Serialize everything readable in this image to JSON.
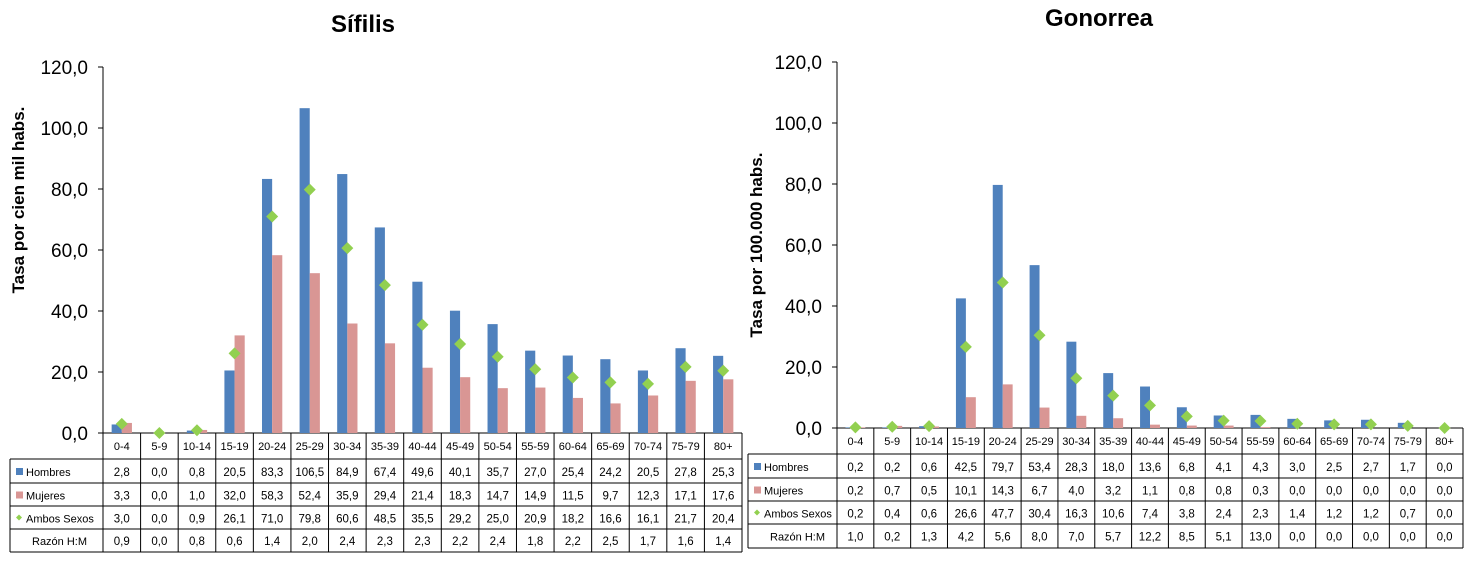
{
  "chart_data": [
    {
      "type": "bar",
      "title": "Sífilis",
      "xlabel": "",
      "ylabel": "Tasa por cien mil habs.",
      "ylim": [
        0,
        120
      ],
      "yticks": [
        "0,0",
        "20,0",
        "40,0",
        "60,0",
        "80,0",
        "100,0",
        "120,0"
      ],
      "categories": [
        "0-4",
        "5-9",
        "10-14",
        "15-19",
        "20-24",
        "25-29",
        "30-34",
        "35-39",
        "40-44",
        "45-49",
        "50-54",
        "55-59",
        "60-64",
        "65-69",
        "70-74",
        "75-79",
        "80+"
      ],
      "series": [
        {
          "name": "Hombres",
          "kind": "bar",
          "color": "#4f81bd",
          "values": [
            2.8,
            0.0,
            0.8,
            20.5,
            83.3,
            106.5,
            84.9,
            67.4,
            49.6,
            40.1,
            35.7,
            27.0,
            25.4,
            24.2,
            20.5,
            27.8,
            25.3
          ],
          "labels": [
            "2,8",
            "0,0",
            "0,8",
            "20,5",
            "83,3",
            "106,5",
            "84,9",
            "67,4",
            "49,6",
            "40,1",
            "35,7",
            "27,0",
            "25,4",
            "24,2",
            "20,5",
            "27,8",
            "25,3"
          ]
        },
        {
          "name": "Mujeres",
          "kind": "bar",
          "color": "#d99694",
          "values": [
            3.3,
            0.0,
            1.0,
            32.0,
            58.3,
            52.4,
            35.9,
            29.4,
            21.4,
            18.3,
            14.7,
            14.9,
            11.5,
            9.7,
            12.3,
            17.1,
            17.6
          ],
          "labels": [
            "3,3",
            "0,0",
            "1,0",
            "32,0",
            "58,3",
            "52,4",
            "35,9",
            "29,4",
            "21,4",
            "18,3",
            "14,7",
            "14,9",
            "11,5",
            "9,7",
            "12,3",
            "17,1",
            "17,6"
          ]
        },
        {
          "name": "Ambos Sexos",
          "kind": "marker",
          "color": "#92d050",
          "values": [
            3.0,
            0.0,
            0.9,
            26.1,
            71.0,
            79.8,
            60.6,
            48.5,
            35.5,
            29.2,
            25.0,
            20.9,
            18.2,
            16.6,
            16.1,
            21.7,
            20.4
          ],
          "labels": [
            "3,0",
            "0,0",
            "0,9",
            "26,1",
            "71,0",
            "79,8",
            "60,6",
            "48,5",
            "35,5",
            "29,2",
            "25,0",
            "20,9",
            "18,2",
            "16,6",
            "16,1",
            "21,7",
            "20,4"
          ]
        },
        {
          "name": "Razón H:M",
          "kind": "table",
          "values": [
            0.9,
            0.0,
            0.8,
            0.6,
            1.4,
            2.0,
            2.4,
            2.3,
            2.3,
            2.2,
            2.4,
            1.8,
            2.2,
            2.5,
            1.7,
            1.6,
            1.4
          ],
          "labels": [
            "0,9",
            "0,0",
            "0,8",
            "0,6",
            "1,4",
            "2,0",
            "2,4",
            "2,3",
            "2,3",
            "2,2",
            "2,4",
            "1,8",
            "2,2",
            "2,5",
            "1,7",
            "1,6",
            "1,4"
          ]
        }
      ]
    },
    {
      "type": "bar",
      "title": "Gonorrea",
      "xlabel": "",
      "ylabel": "Tasa por 100.000 habs.",
      "ylim": [
        0,
        120
      ],
      "yticks": [
        "0,0",
        "20,0",
        "40,0",
        "60,0",
        "80,0",
        "100,0",
        "120,0"
      ],
      "categories": [
        "0-4",
        "5-9",
        "10-14",
        "15-19",
        "20-24",
        "25-29",
        "30-34",
        "35-39",
        "40-44",
        "45-49",
        "50-54",
        "55-59",
        "60-64",
        "65-69",
        "70-74",
        "75-79",
        "80+"
      ],
      "series": [
        {
          "name": "Hombres",
          "kind": "bar",
          "color": "#4f81bd",
          "values": [
            0.2,
            0.2,
            0.6,
            42.5,
            79.7,
            53.4,
            28.3,
            18.0,
            13.6,
            6.8,
            4.1,
            4.3,
            3.0,
            2.5,
            2.7,
            1.7,
            0.0
          ],
          "labels": [
            "0,2",
            "0,2",
            "0,6",
            "42,5",
            "79,7",
            "53,4",
            "28,3",
            "18,0",
            "13,6",
            "6,8",
            "4,1",
            "4,3",
            "3,0",
            "2,5",
            "2,7",
            "1,7",
            "0,0"
          ]
        },
        {
          "name": "Mujeres",
          "kind": "bar",
          "color": "#d99694",
          "values": [
            0.2,
            0.7,
            0.5,
            10.1,
            14.3,
            6.7,
            4.0,
            3.2,
            1.1,
            0.8,
            0.8,
            0.3,
            0.0,
            0.0,
            0.0,
            0.0,
            0.0
          ],
          "labels": [
            "0,2",
            "0,7",
            "0,5",
            "10,1",
            "14,3",
            "6,7",
            "4,0",
            "3,2",
            "1,1",
            "0,8",
            "0,8",
            "0,3",
            "0,0",
            "0,0",
            "0,0",
            "0,0",
            "0,0"
          ]
        },
        {
          "name": "Ambos Sexos",
          "kind": "marker",
          "color": "#92d050",
          "values": [
            0.2,
            0.4,
            0.6,
            26.6,
            47.7,
            30.4,
            16.3,
            10.6,
            7.4,
            3.8,
            2.4,
            2.3,
            1.4,
            1.2,
            1.2,
            0.7,
            0.0
          ],
          "labels": [
            "0,2",
            "0,4",
            "0,6",
            "26,6",
            "47,7",
            "30,4",
            "16,3",
            "10,6",
            "7,4",
            "3,8",
            "2,4",
            "2,3",
            "1,4",
            "1,2",
            "1,2",
            "0,7",
            "0,0"
          ]
        },
        {
          "name": "Razón H:M",
          "kind": "table",
          "values": [
            1.0,
            0.2,
            1.3,
            4.2,
            5.6,
            8.0,
            7.0,
            5.7,
            12.2,
            8.5,
            5.1,
            13.0,
            0.0,
            0.0,
            0.0,
            0.0,
            0.0
          ],
          "labels": [
            "1,0",
            "0,2",
            "1,3",
            "4,2",
            "5,6",
            "8,0",
            "7,0",
            "5,7",
            "12,2",
            "8,5",
            "5,1",
            "13,0",
            "0,0",
            "0,0",
            "0,0",
            "0,0",
            "0,0"
          ]
        }
      ]
    }
  ]
}
